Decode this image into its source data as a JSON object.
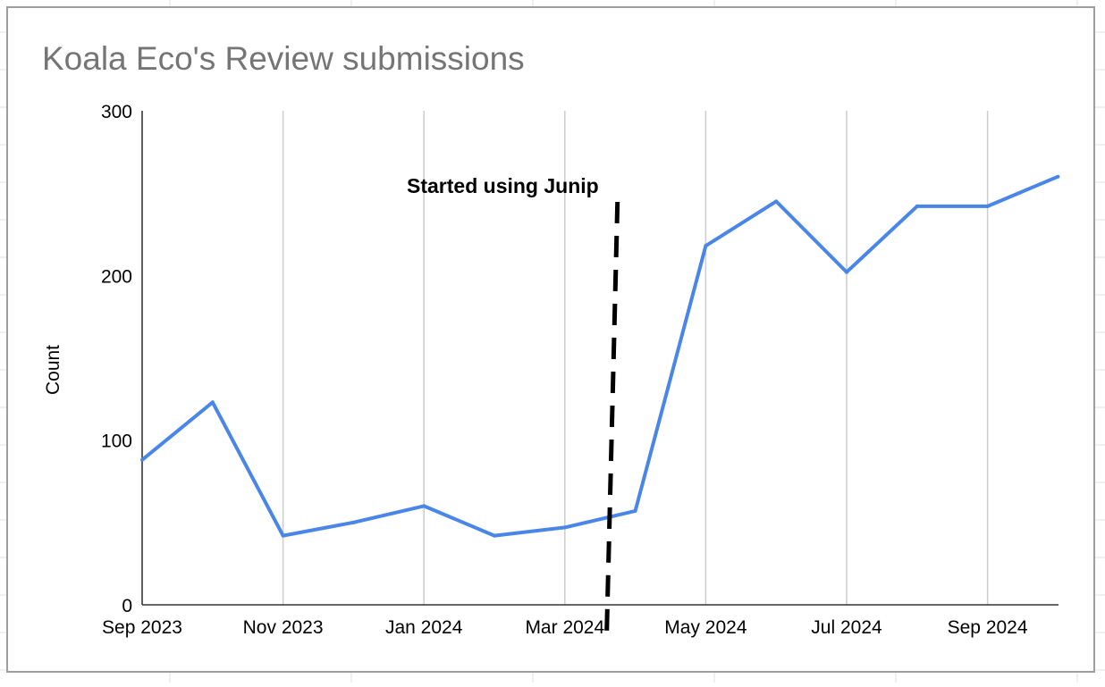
{
  "chart_data": {
    "type": "line",
    "title": "Koala Eco's Review submissions",
    "xlabel": "",
    "ylabel": "Count",
    "x": [
      "2023-09",
      "2023-10",
      "2023-11",
      "2023-12",
      "2024-01",
      "2024-02",
      "2024-03",
      "2024-04",
      "2024-05",
      "2024-06",
      "2024-07",
      "2024-08",
      "2024-09",
      "2024-10"
    ],
    "xticks": [
      {
        "x": "2023-09",
        "label": "Sep 2023"
      },
      {
        "x": "2023-11",
        "label": "Nov 2023"
      },
      {
        "x": "2024-01",
        "label": "Jan 2024"
      },
      {
        "x": "2024-03",
        "label": "Mar 2024"
      },
      {
        "x": "2024-05",
        "label": "May 2024"
      },
      {
        "x": "2024-07",
        "label": "Jul 2024"
      },
      {
        "x": "2024-09",
        "label": "Sep 2024"
      }
    ],
    "yticks": [
      0,
      100,
      200,
      300
    ],
    "ylim": [
      0,
      300
    ],
    "series": [
      {
        "values": [
          88,
          123,
          42,
          50,
          60,
          42,
          47,
          57,
          218,
          245,
          202,
          242,
          242,
          260
        ]
      }
    ],
    "annotations": [
      {
        "text": "Started using Junip",
        "x": "2024-03-20",
        "style": "dashed vertical line"
      }
    ],
    "grid": "vertical",
    "legend": "none",
    "colors": {
      "line": "#4a86e8",
      "grid": "#cccccc",
      "title": "#757575",
      "annotation": "#000000",
      "frame": "#9e9e9e"
    }
  }
}
